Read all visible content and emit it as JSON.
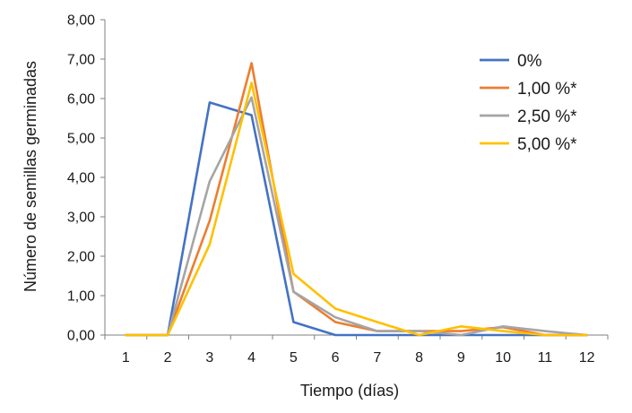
{
  "chart_data": {
    "type": "line",
    "title": "",
    "xlabel": "Tiempo (días)",
    "ylabel": "Número de semillas germinadas",
    "categories": [
      "1",
      "2",
      "3",
      "4",
      "5",
      "6",
      "7",
      "8",
      "9",
      "10",
      "11",
      "12"
    ],
    "y_tick_labels": [
      "0,00",
      "1,00",
      "2,00",
      "3,00",
      "4,00",
      "5,00",
      "6,00",
      "7,00",
      "8,00"
    ],
    "ylim": [
      0,
      8
    ],
    "grid": false,
    "legend_position": "top-right",
    "series": [
      {
        "name": "0%",
        "color": "#4472C4",
        "values": [
          0,
          0,
          5.9,
          5.58,
          0.33,
          0,
          0,
          0,
          0,
          0,
          0,
          0
        ]
      },
      {
        "name": "1,00 %*",
        "color": "#ED7D31",
        "values": [
          0,
          0,
          2.9,
          6.9,
          1.1,
          0.33,
          0.1,
          0.1,
          0.1,
          0.2,
          0,
          0
        ]
      },
      {
        "name": "2,50 %*",
        "color": "#A5A5A5",
        "values": [
          0,
          0,
          3.9,
          6.03,
          1.1,
          0.45,
          0.1,
          0.1,
          0,
          0.22,
          0.1,
          0
        ]
      },
      {
        "name": "5,00 %*",
        "color": "#FFC000",
        "values": [
          0,
          0,
          2.3,
          6.4,
          1.55,
          0.67,
          0.33,
          0,
          0.22,
          0.1,
          0,
          0
        ]
      }
    ]
  }
}
